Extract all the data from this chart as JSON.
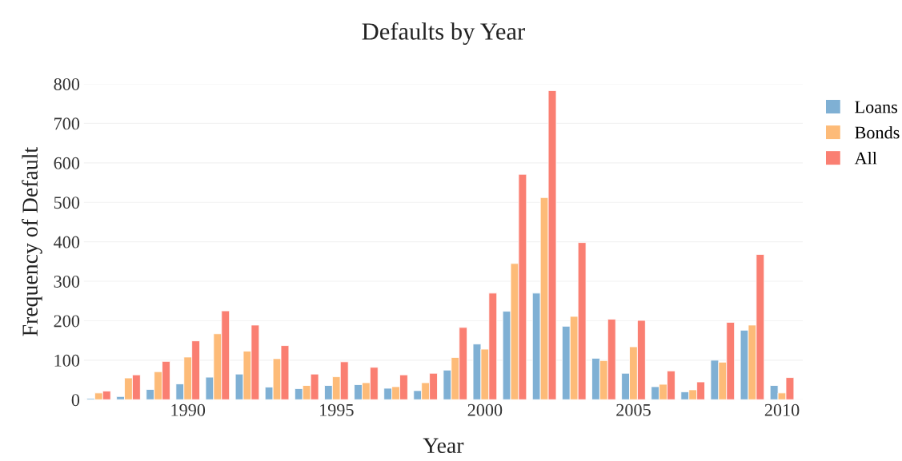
{
  "chart_data": {
    "type": "bar",
    "title": "Defaults by Year",
    "xlabel": "Year",
    "ylabel": "Frequency of Default",
    "x": [
      1987,
      1988,
      1989,
      1990,
      1991,
      1992,
      1993,
      1994,
      1995,
      1996,
      1997,
      1998,
      1999,
      2000,
      2001,
      2002,
      2003,
      2004,
      2005,
      2006,
      2007,
      2008,
      2009,
      2010
    ],
    "series": [
      {
        "name": "Loans",
        "color": "#7fb0d4",
        "values": [
          3,
          8,
          26,
          40,
          57,
          65,
          32,
          28,
          36,
          38,
          29,
          23,
          75,
          141,
          224,
          270,
          186,
          105,
          67,
          33,
          20,
          100,
          176,
          36
        ]
      },
      {
        "name": "Bonds",
        "color": "#fdbb78",
        "values": [
          17,
          55,
          71,
          108,
          167,
          123,
          104,
          36,
          58,
          43,
          33,
          43,
          107,
          128,
          345,
          512,
          211,
          99,
          134,
          39,
          25,
          95,
          189,
          17
        ]
      },
      {
        "name": "All",
        "color": "#fa7f72",
        "values": [
          22,
          63,
          97,
          149,
          225,
          189,
          137,
          65,
          96,
          82,
          63,
          67,
          183,
          270,
          571,
          783,
          398,
          204,
          201,
          73,
          45,
          196,
          368,
          56
        ]
      }
    ],
    "xlim": [
      1986.5,
      2010.7
    ],
    "xticks": [
      1990,
      1995,
      2000,
      2005,
      2010
    ],
    "ylim": [
      0,
      800
    ],
    "yticks": [
      0,
      100,
      200,
      300,
      400,
      500,
      600,
      700,
      800
    ],
    "grid": "y",
    "legend": "top right"
  }
}
